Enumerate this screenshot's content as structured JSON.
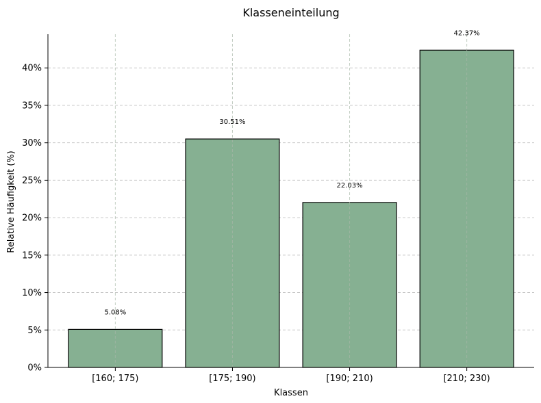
{
  "chart_data": {
    "type": "bar",
    "title": "Klasseneinteilung",
    "xlabel": "Klassen",
    "ylabel": "Relative Häufigkeit (%)",
    "categories": [
      "[160; 175)",
      "[175; 190)",
      "[190; 210)",
      "[210; 230)"
    ],
    "values": [
      5.08,
      30.51,
      22.03,
      42.37
    ],
    "data_labels": [
      "5.08%",
      "30.51%",
      "22.03%",
      "42.37%"
    ],
    "ylim": [
      0,
      44.5
    ],
    "yticks": [
      0,
      5,
      10,
      15,
      20,
      25,
      30,
      35,
      40
    ],
    "ytick_labels": [
      "0%",
      "5%",
      "10%",
      "15%",
      "20%",
      "25%",
      "30%",
      "35%",
      "40%"
    ],
    "grid": "y dashed",
    "bar_color": "#86b092",
    "bar_edge_color": "#000000",
    "grid_color": "#c8c8c8"
  }
}
